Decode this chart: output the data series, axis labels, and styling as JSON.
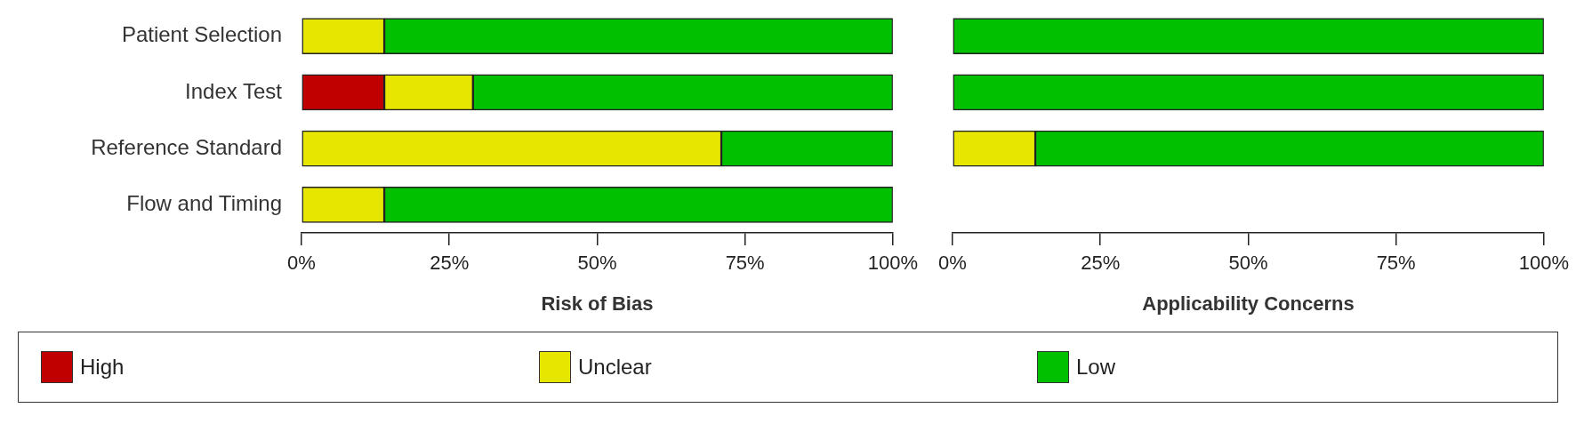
{
  "chart_data": [
    {
      "type": "bar",
      "orientation": "horizontal",
      "stacked": true,
      "xlabel": "Risk of Bias",
      "legend": "bottom",
      "grid": false,
      "categories": [
        "Patient Selection",
        "Index Test",
        "Reference Standard",
        "Flow and Timing"
      ],
      "series": [
        {
          "name": "High",
          "color": "#c00000",
          "values": [
            0,
            14,
            0,
            0
          ]
        },
        {
          "name": "Unclear",
          "color": "#e6e600",
          "values": [
            14,
            15,
            71,
            14
          ]
        },
        {
          "name": "Low",
          "color": "#00c000",
          "values": [
            86,
            71,
            29,
            86
          ]
        }
      ],
      "xlim": [
        0,
        100
      ],
      "xticks": [
        {
          "value": 0,
          "label": "0%"
        },
        {
          "value": 25,
          "label": "25%"
        },
        {
          "value": 50,
          "label": "50%"
        },
        {
          "value": 75,
          "label": "75%"
        },
        {
          "value": 100,
          "label": "100%"
        }
      ]
    },
    {
      "type": "bar",
      "orientation": "horizontal",
      "stacked": true,
      "xlabel": "Applicability Concerns",
      "grid": false,
      "tick_labels": "x",
      "legend": "bottom",
      "categories": [
        "Patient Selection",
        "Index Test",
        "Reference Standard",
        "Flow and Timing"
      ],
      "series": [
        {
          "name": "High",
          "color": "#c00000",
          "values": [
            0,
            0,
            0,
            null
          ]
        },
        {
          "name": "Unclear",
          "color": "#e6e600",
          "values": [
            0,
            0,
            14,
            null
          ]
        },
        {
          "name": "Low",
          "color": "#00c000",
          "values": [
            100,
            100,
            86,
            null
          ]
        }
      ],
      "xlim": [
        0,
        100
      ],
      "xticks": [
        {
          "value": 0,
          "label": "0%"
        },
        {
          "value": 25,
          "label": "25%"
        },
        {
          "value": 50,
          "label": "50%"
        },
        {
          "value": 75,
          "label": "75%"
        },
        {
          "value": 100,
          "label": "100%"
        }
      ]
    }
  ]
}
